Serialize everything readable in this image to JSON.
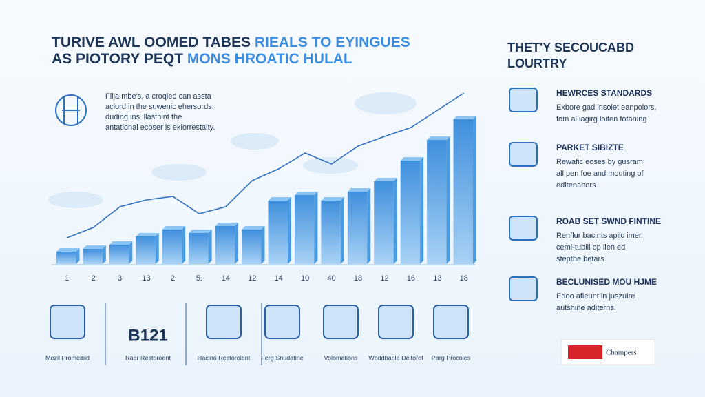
{
  "header": {
    "title_1": "TURIVE AWL OOMED TABES",
    "title_1b": "RIEALS TO EYINGUES",
    "title_2": "AS PIOTORY PEQT",
    "title_2b": "MONS HROATIC HULAL",
    "intro": [
      "Filja mbe's, a croqied can assta",
      "aclord in the suwenic ehersords,",
      "duding ins illasthint the",
      "antational ecoser is eklorrestaity."
    ]
  },
  "chart_data": {
    "type": "bar",
    "categories": [
      "1",
      "2",
      "3",
      "13",
      "2",
      "5.",
      "14",
      "12",
      "14",
      "10",
      "40",
      "18",
      "12",
      "16",
      "13",
      "18"
    ],
    "ylim": [
      0,
      250
    ],
    "series": [
      {
        "type": "bar",
        "color": "#4a9be0",
        "values": [
          18,
          22,
          28,
          40,
          50,
          45,
          55,
          50,
          92,
          100,
          92,
          105,
          120,
          150,
          180,
          210
        ]
      },
      {
        "type": "line",
        "color": "#2f6fc0",
        "values": [
          38,
          53,
          83,
          93,
          98,
          73,
          83,
          121,
          138,
          161,
          145,
          171,
          185,
          198,
          223,
          248
        ]
      }
    ]
  },
  "icons": {
    "heading": "B121",
    "labels": [
      "Mezil Promeibid",
      "Raer Restoroent",
      "Hacino Restoroient",
      "Ferg Shudatine",
      "Volomations",
      "Woddbable Deltorof",
      "Parg Procoles"
    ]
  },
  "side": {
    "title": [
      "THET'Y SECOUCABD",
      "LOURTRY"
    ],
    "items": [
      {
        "heading": "HEWRCES STANDARDS",
        "text": [
          "Exbore gad insolet eanpolors,",
          "fom al iagirg loiten fotaning"
        ]
      },
      {
        "heading": "PARKET SIBIZTE",
        "text": [
          "Rewafic eoses by gusram",
          "all pen foe and mouting of",
          "editenabors."
        ]
      },
      {
        "heading": "ROAB SET SWND FINTINE",
        "text": [
          "Renflur bacints apiic imer,",
          "cemi-tublil op ilen ed",
          "stepthe betars."
        ]
      },
      {
        "heading": "BECLUNISED MOU HJME",
        "text": [
          "Edoo afleunt in juszuire",
          "autshine aditerns."
        ]
      }
    ],
    "logo": "Champers"
  }
}
